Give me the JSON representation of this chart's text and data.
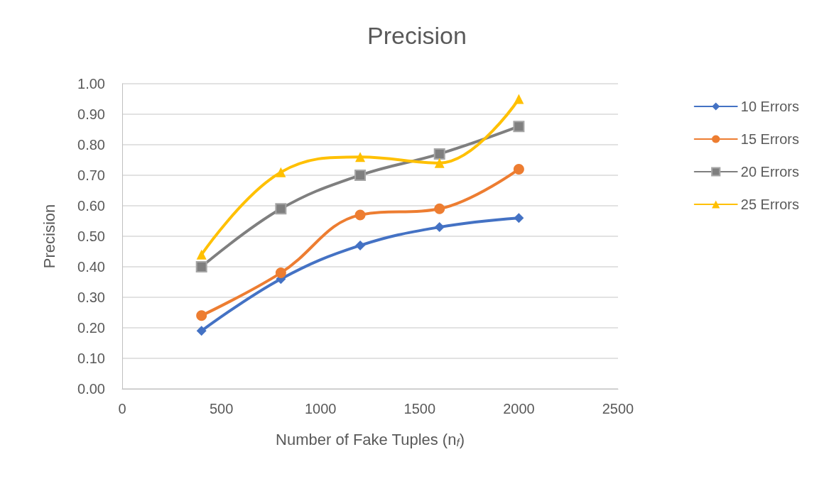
{
  "chart_data": {
    "type": "line",
    "title": "Precision",
    "xlabel": "Number of Fake Tuples (n$_{f}$)",
    "ylabel": "Precision",
    "x": [
      400,
      800,
      1200,
      1600,
      2000
    ],
    "series": [
      {
        "name": "10 Errors",
        "color": "#4472c4",
        "marker": "diamond",
        "values": [
          0.19,
          0.36,
          0.47,
          0.53,
          0.56
        ]
      },
      {
        "name": "15 Errors",
        "color": "#ed7d31",
        "marker": "circle",
        "values": [
          0.24,
          0.38,
          0.57,
          0.59,
          0.72
        ]
      },
      {
        "name": "20 Errors",
        "color": "#7f7f7f",
        "marker": "square",
        "values": [
          0.4,
          0.59,
          0.7,
          0.77,
          0.86
        ]
      },
      {
        "name": "25 Errors",
        "color": "#ffc000",
        "marker": "triangle",
        "values": [
          0.44,
          0.71,
          0.76,
          0.74,
          0.95
        ]
      }
    ],
    "xlim": [
      0,
      2500
    ],
    "xticks": [
      0,
      500,
      1000,
      1500,
      2000,
      2500
    ],
    "ylim": [
      0,
      1
    ],
    "yticks": [
      {
        "value": 0,
        "label": "0.00"
      },
      {
        "value": 0.1,
        "label": "0.10"
      },
      {
        "value": 0.2,
        "label": "0.20"
      },
      {
        "value": 0.3,
        "label": "0.30"
      },
      {
        "value": 0.4,
        "label": "0.40"
      },
      {
        "value": 0.5,
        "label": "0.50"
      },
      {
        "value": 0.6,
        "label": "0.60"
      },
      {
        "value": 0.7,
        "label": "0.70"
      },
      {
        "value": 0.8,
        "label": "0.80"
      },
      {
        "value": 0.9,
        "label": "0.90"
      },
      {
        "value": 1,
        "label": "1.00"
      }
    ],
    "grid": "y",
    "legend": "right",
    "line_style": "solid"
  }
}
